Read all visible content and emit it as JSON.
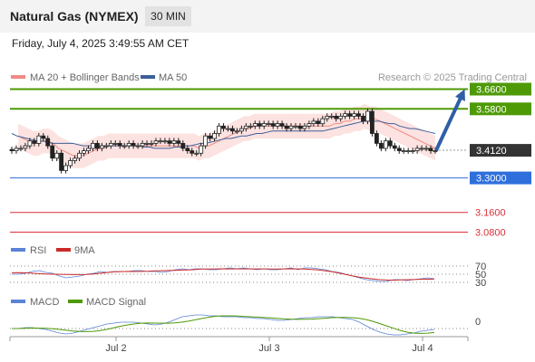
{
  "header": {
    "title": "Natural Gas (NYMEX)",
    "interval": "30 MIN",
    "datetime": "Friday, July 4, 2025 3:49:55 AM CET"
  },
  "colors": {
    "resistance": "#4e9a06",
    "support": "#2f6fdc",
    "target_low": "#d9303a",
    "price_box": "#333333",
    "arrow": "#2f5fa5",
    "bollinger_fill": "#fbd8d6",
    "ma20": "#f08a84",
    "ma50": "#3d5f9a",
    "rsi": "#5b83d6",
    "rsi_ma": "#cc2a2a",
    "macd": "#5b83d6",
    "macd_signal": "#4e9a06"
  },
  "legend": {
    "ma20_label": "MA 20 + Bollinger Bands",
    "ma50_label": "MA 50",
    "credit": "Research © 2025 Trading Central"
  },
  "levels": [
    {
      "value": "3.6600",
      "kind": "resistance"
    },
    {
      "value": "3.5800",
      "kind": "resistance"
    },
    {
      "value": "3.4120",
      "kind": "last"
    },
    {
      "value": "3.3000",
      "kind": "support"
    },
    {
      "value": "3.1600",
      "kind": "target"
    },
    {
      "value": "3.0800",
      "kind": "target"
    }
  ],
  "rsi_panel": {
    "rsi_label": "RSI",
    "ma_label": "9MA",
    "ticks": [
      "70",
      "50",
      "30"
    ]
  },
  "macd_panel": {
    "macd_label": "MACD",
    "signal_label": "MACD Signal",
    "tick": "0"
  },
  "x_axis": {
    "ticks": [
      "Jul 2",
      "Jul 3",
      "Jul 4"
    ]
  },
  "chart_data": {
    "type": "candlestick",
    "ylim": [
      3.06,
      3.68
    ],
    "price_closes": [
      3.41,
      3.42,
      3.42,
      3.43,
      3.45,
      3.44,
      3.47,
      3.46,
      3.43,
      3.38,
      3.4,
      3.33,
      3.35,
      3.37,
      3.38,
      3.4,
      3.41,
      3.42,
      3.44,
      3.42,
      3.43,
      3.43,
      3.44,
      3.44,
      3.43,
      3.43,
      3.44,
      3.43,
      3.43,
      3.44,
      3.44,
      3.44,
      3.45,
      3.45,
      3.45,
      3.44,
      3.45,
      3.44,
      3.42,
      3.41,
      3.4,
      3.4,
      3.43,
      3.47,
      3.46,
      3.48,
      3.51,
      3.5,
      3.5,
      3.49,
      3.49,
      3.5,
      3.51,
      3.51,
      3.52,
      3.51,
      3.52,
      3.52,
      3.51,
      3.52,
      3.51,
      3.5,
      3.51,
      3.51,
      3.5,
      3.51,
      3.52,
      3.53,
      3.52,
      3.54,
      3.55,
      3.55,
      3.54,
      3.55,
      3.56,
      3.55,
      3.56,
      3.55,
      3.53,
      3.57,
      3.48,
      3.44,
      3.42,
      3.45,
      3.43,
      3.42,
      3.41,
      3.41,
      3.41,
      3.41,
      3.42,
      3.42,
      3.42,
      3.41,
      3.41
    ],
    "ma50": [
      3.48,
      3.47,
      3.465,
      3.46,
      3.455,
      3.45,
      3.45,
      3.445,
      3.44,
      3.44,
      3.44,
      3.44,
      3.44,
      3.435,
      3.43,
      3.43,
      3.43,
      3.43,
      3.43,
      3.43,
      3.43,
      3.43,
      3.43,
      3.43,
      3.43,
      3.43,
      3.425,
      3.425,
      3.42,
      3.42,
      3.42,
      3.42,
      3.425,
      3.425,
      3.43,
      3.43,
      3.435,
      3.44,
      3.44,
      3.445,
      3.45,
      3.455,
      3.46,
      3.46,
      3.465,
      3.47,
      3.47,
      3.475,
      3.48,
      3.48,
      3.485,
      3.49,
      3.49,
      3.49,
      3.49,
      3.49,
      3.49,
      3.49,
      3.49,
      3.49,
      3.49,
      3.49,
      3.495,
      3.5,
      3.505,
      3.51,
      3.515,
      3.52,
      3.525,
      3.53,
      3.53,
      3.53,
      3.53,
      3.525,
      3.52,
      3.52,
      3.51,
      3.505,
      3.5,
      3.5,
      3.495,
      3.49,
      3.485,
      3.48
    ],
    "ma20": [
      3.47,
      3.46,
      3.45,
      3.44,
      3.44,
      3.45,
      3.45,
      3.44,
      3.42,
      3.41,
      3.4,
      3.39,
      3.39,
      3.39,
      3.4,
      3.41,
      3.42,
      3.42,
      3.43,
      3.43,
      3.43,
      3.43,
      3.43,
      3.43,
      3.43,
      3.43,
      3.43,
      3.43,
      3.43,
      3.43,
      3.43,
      3.43,
      3.43,
      3.43,
      3.43,
      3.43,
      3.42,
      3.43,
      3.43,
      3.44,
      3.45,
      3.46,
      3.47,
      3.48,
      3.49,
      3.5,
      3.5,
      3.51,
      3.51,
      3.51,
      3.51,
      3.51,
      3.51,
      3.51,
      3.51,
      3.51,
      3.51,
      3.51,
      3.51,
      3.51,
      3.51,
      3.51,
      3.51,
      3.52,
      3.52,
      3.53,
      3.53,
      3.54,
      3.54,
      3.55,
      3.54,
      3.54,
      3.53,
      3.52,
      3.51,
      3.5,
      3.49,
      3.48,
      3.47,
      3.46,
      3.45,
      3.44,
      3.43,
      3.42
    ]
  }
}
